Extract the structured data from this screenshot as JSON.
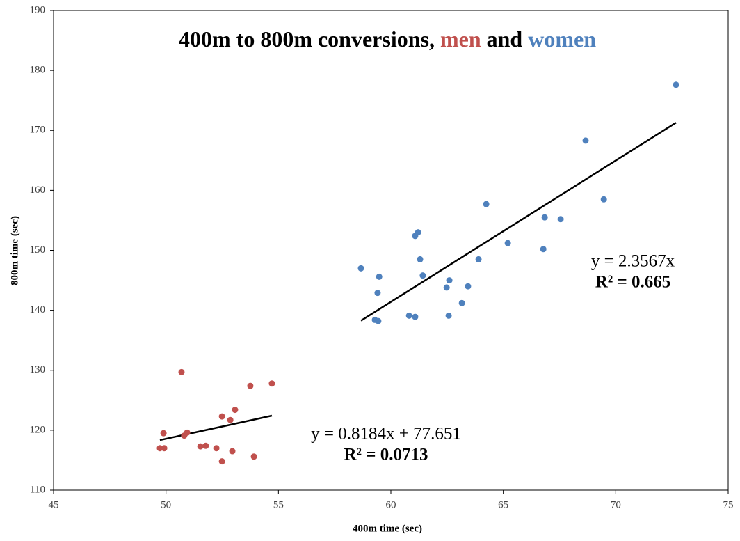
{
  "chart_data": {
    "type": "scatter",
    "title_parts": [
      "400m to 800m conversions,",
      "men",
      "and",
      "women"
    ],
    "x_label": "400m time (sec)",
    "y_label": "800m time (sec)",
    "xlim": [
      45,
      75
    ],
    "xticks": [
      45,
      50,
      55,
      60,
      65,
      70,
      75
    ],
    "ylim": [
      110,
      190
    ],
    "yticks": [
      110,
      120,
      130,
      140,
      150,
      160,
      170,
      180,
      190
    ],
    "grid": false,
    "series": [
      {
        "name": "men",
        "color": "#c0504d",
        "x": [
          49.73,
          49.92,
          49.89,
          50.69,
          50.81,
          50.94,
          51.53,
          51.77,
          52.24,
          52.49,
          52.49,
          52.86,
          52.95,
          53.07,
          53.75,
          53.91,
          54.71
        ],
        "values": [
          117.0,
          117.0,
          119.5,
          129.7,
          119.1,
          119.6,
          117.3,
          117.4,
          117.0,
          114.8,
          122.3,
          121.7,
          116.5,
          123.4,
          127.4,
          115.6,
          127.8
        ],
        "trendline": {
          "slope": 0.8184,
          "intercept": 77.651,
          "equation": "y = 0.8184x + 77.651",
          "r2_label": "R² = 0.0713"
        }
      },
      {
        "name": "women",
        "color": "#4f81bd",
        "x": [
          58.67,
          59.48,
          59.41,
          59.29,
          59.44,
          60.81,
          61.08,
          61.08,
          61.21,
          61.3,
          61.42,
          62.48,
          62.57,
          62.6,
          63.16,
          63.43,
          63.9,
          64.24,
          65.2,
          66.78,
          66.84,
          67.55,
          68.66,
          69.47,
          72.68
        ],
        "values": [
          147.0,
          145.6,
          142.9,
          138.4,
          138.2,
          139.1,
          138.9,
          152.4,
          153.0,
          148.5,
          145.8,
          143.8,
          139.1,
          145.0,
          141.2,
          144.0,
          148.5,
          157.7,
          151.2,
          150.2,
          155.5,
          155.2,
          168.3,
          158.5,
          177.6
        ],
        "trendline": {
          "slope": 2.3567,
          "intercept": 0,
          "equation": "y = 2.3567x",
          "r2_label": "R² = 0.665"
        }
      }
    ]
  }
}
